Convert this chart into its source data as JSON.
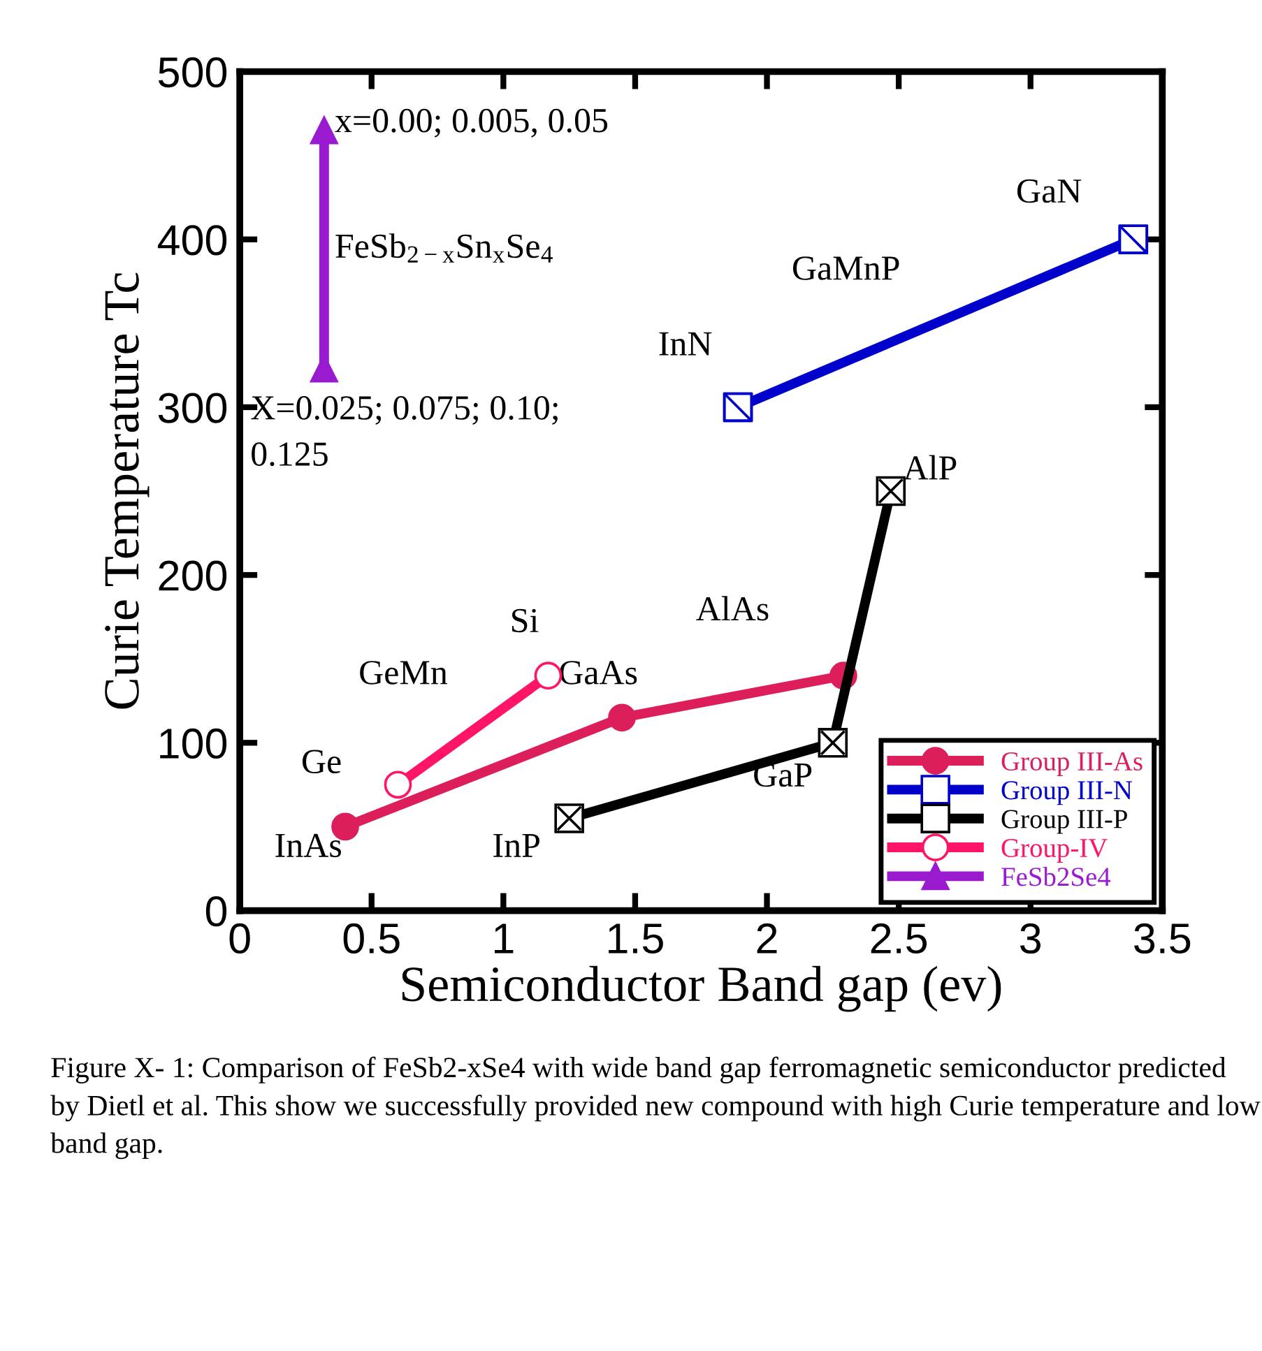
{
  "chart_data": {
    "type": "line",
    "xlabel": "Semiconductor Band gap (ev)",
    "ylabel": "Curie Temperature Tc",
    "xlim": [
      0,
      3.5
    ],
    "xticks": [
      0,
      0.5,
      1,
      1.5,
      2,
      2.5,
      3,
      3.5
    ],
    "ylim": [
      0,
      500
    ],
    "yticks": [
      0,
      100,
      200,
      300,
      400,
      500
    ],
    "grid": false,
    "legend": "bottom right",
    "line_style": "solid",
    "series": [
      {
        "name": "Group III-As",
        "color": "#dc1e5a",
        "marker": "circle",
        "x": [
          0.4,
          1.45,
          2.29
        ],
        "values": [
          50,
          115,
          140
        ]
      },
      {
        "name": "Group III-N",
        "color": "#0000cc",
        "marker": "square",
        "x": [
          1.89,
          3.39
        ],
        "values": [
          300,
          400
        ]
      },
      {
        "name": "Group III-P",
        "color": "#000000",
        "marker": "square",
        "x": [
          1.25,
          2.25,
          2.47
        ],
        "values": [
          55,
          100,
          250
        ]
      },
      {
        "name": "Group-IV",
        "color": "#ff1468",
        "marker": "circle",
        "x": [
          0.6,
          1.17
        ],
        "values": [
          75,
          140
        ]
      },
      {
        "name": "FeSb2Se4",
        "color": "#9a1ad0",
        "marker": "triangle",
        "x": [
          0.32,
          0.32
        ],
        "values": [
          323,
          465
        ]
      }
    ],
    "annotations": [
      "x=0.00; 0.005, 0.05",
      "FeSb$_{2−x}$Sn$_{x}$Se$_{4}$",
      "X=0.025; 0.075; 0.10;\n0.125",
      "GaN",
      "GaMnP",
      "InN",
      "AlP",
      "AlAs",
      "Si",
      "GaAs",
      "GeMn",
      "Ge",
      "InAs",
      "InP",
      "GaP",
      "Figure X- 1: Comparison of FeSb2-xSe4 with wide band gap ferromagnetic semiconductor predicted by Dietl et al. This show we successfully provided new compound with high Curie temperature and low band gap."
    ]
  }
}
